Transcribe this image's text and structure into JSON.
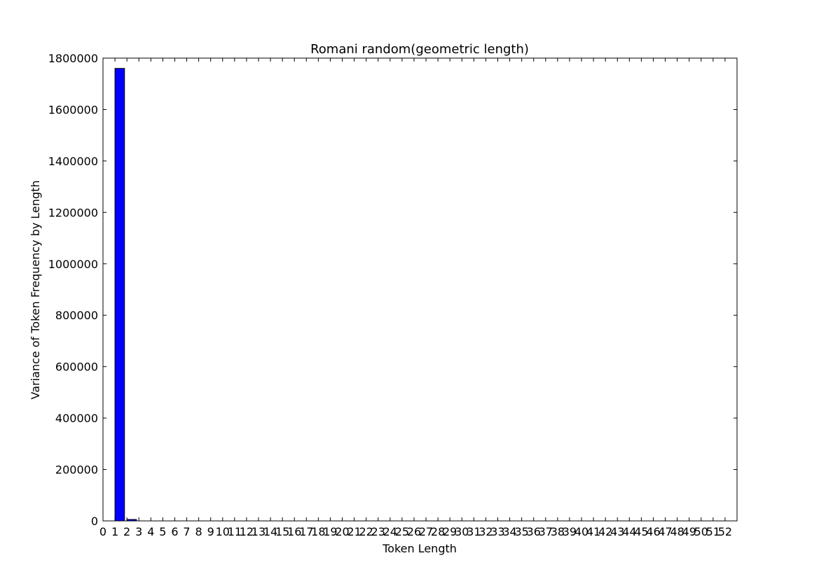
{
  "chart_data": {
    "type": "bar",
    "title": "Romani random(geometric length)",
    "xlabel": "Token Length",
    "ylabel": "Variance of Token Frequency by Length",
    "xlim": [
      0,
      53
    ],
    "ylim": [
      0,
      1800000
    ],
    "x_ticks": [
      0,
      1,
      2,
      3,
      4,
      5,
      6,
      7,
      8,
      9,
      10,
      11,
      12,
      13,
      14,
      15,
      16,
      17,
      18,
      19,
      20,
      21,
      22,
      23,
      24,
      25,
      26,
      27,
      28,
      29,
      30,
      31,
      32,
      33,
      34,
      35,
      36,
      37,
      38,
      39,
      40,
      41,
      42,
      43,
      44,
      45,
      46,
      47,
      48,
      49,
      50,
      51,
      52
    ],
    "y_ticks": [
      0,
      200000,
      400000,
      600000,
      800000,
      1000000,
      1200000,
      1400000,
      1600000,
      1800000
    ],
    "bar_width": 0.8,
    "bar_color": "#0000ff",
    "bar_edge_color": "#000000",
    "grid": false,
    "x": [
      1,
      2,
      3,
      4,
      5,
      6,
      7,
      8,
      9,
      10,
      11,
      12,
      13,
      14,
      15,
      16,
      17,
      18,
      19,
      20,
      21,
      22,
      23,
      24,
      25,
      26,
      27,
      28,
      29,
      30,
      31,
      32,
      33,
      34,
      35,
      36,
      37,
      38,
      39,
      40,
      41,
      42,
      43,
      44,
      45,
      46,
      47,
      48,
      49,
      50,
      51,
      52
    ],
    "values": [
      1760000,
      5500,
      0,
      0,
      0,
      0,
      0,
      0,
      0,
      0,
      0,
      0,
      0,
      0,
      0,
      0,
      0,
      0,
      0,
      0,
      0,
      0,
      0,
      0,
      0,
      0,
      0,
      0,
      0,
      0,
      0,
      0,
      0,
      0,
      0,
      0,
      0,
      0,
      0,
      0,
      0,
      0,
      0,
      0,
      0,
      0,
      0,
      0,
      0,
      0,
      0,
      0
    ]
  }
}
